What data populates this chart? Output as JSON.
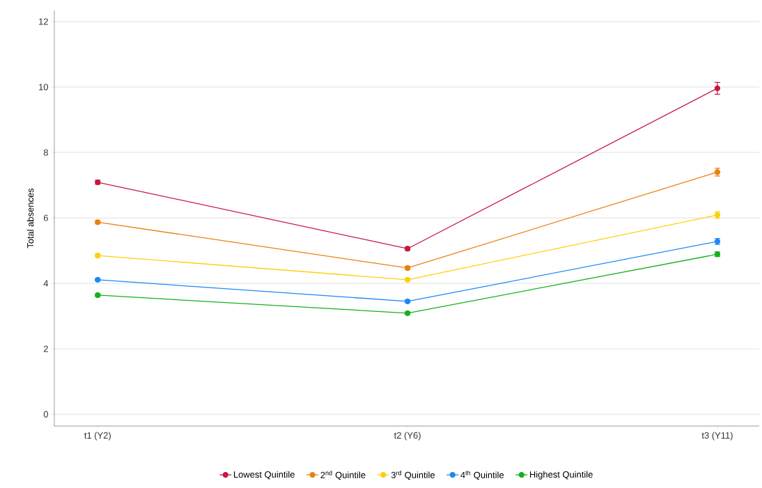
{
  "chart_data": {
    "type": "line",
    "ylabel": "Total absences",
    "categories": [
      "t1 (Y2)",
      "t2 (Y6)",
      "t3 (Y11)"
    ],
    "series": [
      {
        "name": "Lowest Quintile",
        "color": "#c8173f",
        "values": [
          7.09,
          5.06,
          9.96
        ],
        "errors": [
          0.06,
          0.05,
          0.18
        ]
      },
      {
        "name": "2$^{nd}$ Quintile",
        "color": "#e8820c",
        "values": [
          5.87,
          4.47,
          7.4
        ],
        "errors": [
          0.05,
          0.05,
          0.12
        ]
      },
      {
        "name": "3$^{rd}$ Quintile",
        "color": "#fdd00a",
        "values": [
          4.85,
          4.11,
          6.09
        ],
        "errors": [
          0.05,
          0.04,
          0.1
        ]
      },
      {
        "name": "4$^{th}$ Quintile",
        "color": "#1e88f5",
        "values": [
          4.11,
          3.45,
          5.28
        ],
        "errors": [
          0.04,
          0.04,
          0.09
        ]
      },
      {
        "name": "Highest Quintile",
        "color": "#14b01e",
        "values": [
          3.64,
          3.09,
          4.89
        ],
        "errors": [
          0.04,
          0.04,
          0.07
        ]
      }
    ],
    "ylim": [
      -0.36,
      12.34
    ],
    "yticks": [
      0,
      2,
      4,
      6,
      8,
      10,
      12
    ],
    "grid": "y",
    "legend": "bottom",
    "marker": "circle",
    "line_style": "solid"
  }
}
